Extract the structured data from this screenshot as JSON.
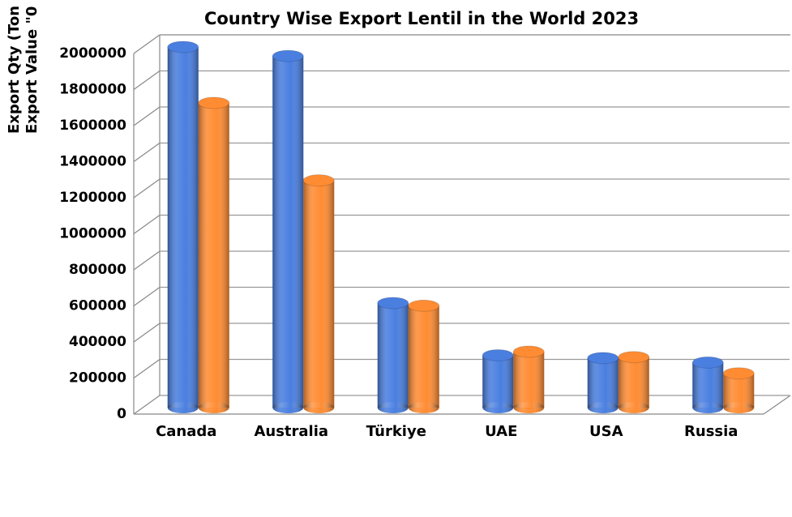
{
  "chart_data": {
    "type": "bar3d",
    "title": "Country Wise Export Lentil in the World 2023",
    "y_label": [
      "Export Qty (Ton",
      "Export Value \"0"
    ],
    "categories": [
      "Canada",
      "Australia",
      "Türkiye",
      "UAE",
      "USA",
      "Russia"
    ],
    "series": [
      {
        "color": "#4a7fe0",
        "values": [
          2000000,
          1950000,
          580000,
          290000,
          275000,
          250000
        ]
      },
      {
        "color": "#ff8c33",
        "values": [
          1690000,
          1260000,
          565000,
          310000,
          280000,
          190000
        ]
      }
    ],
    "ylim": [
      0,
      2000000
    ],
    "yticks": [
      0,
      200000,
      400000,
      600000,
      800000,
      1000000,
      1200000,
      1400000,
      1600000,
      1800000,
      2000000
    ],
    "grid": true
  }
}
